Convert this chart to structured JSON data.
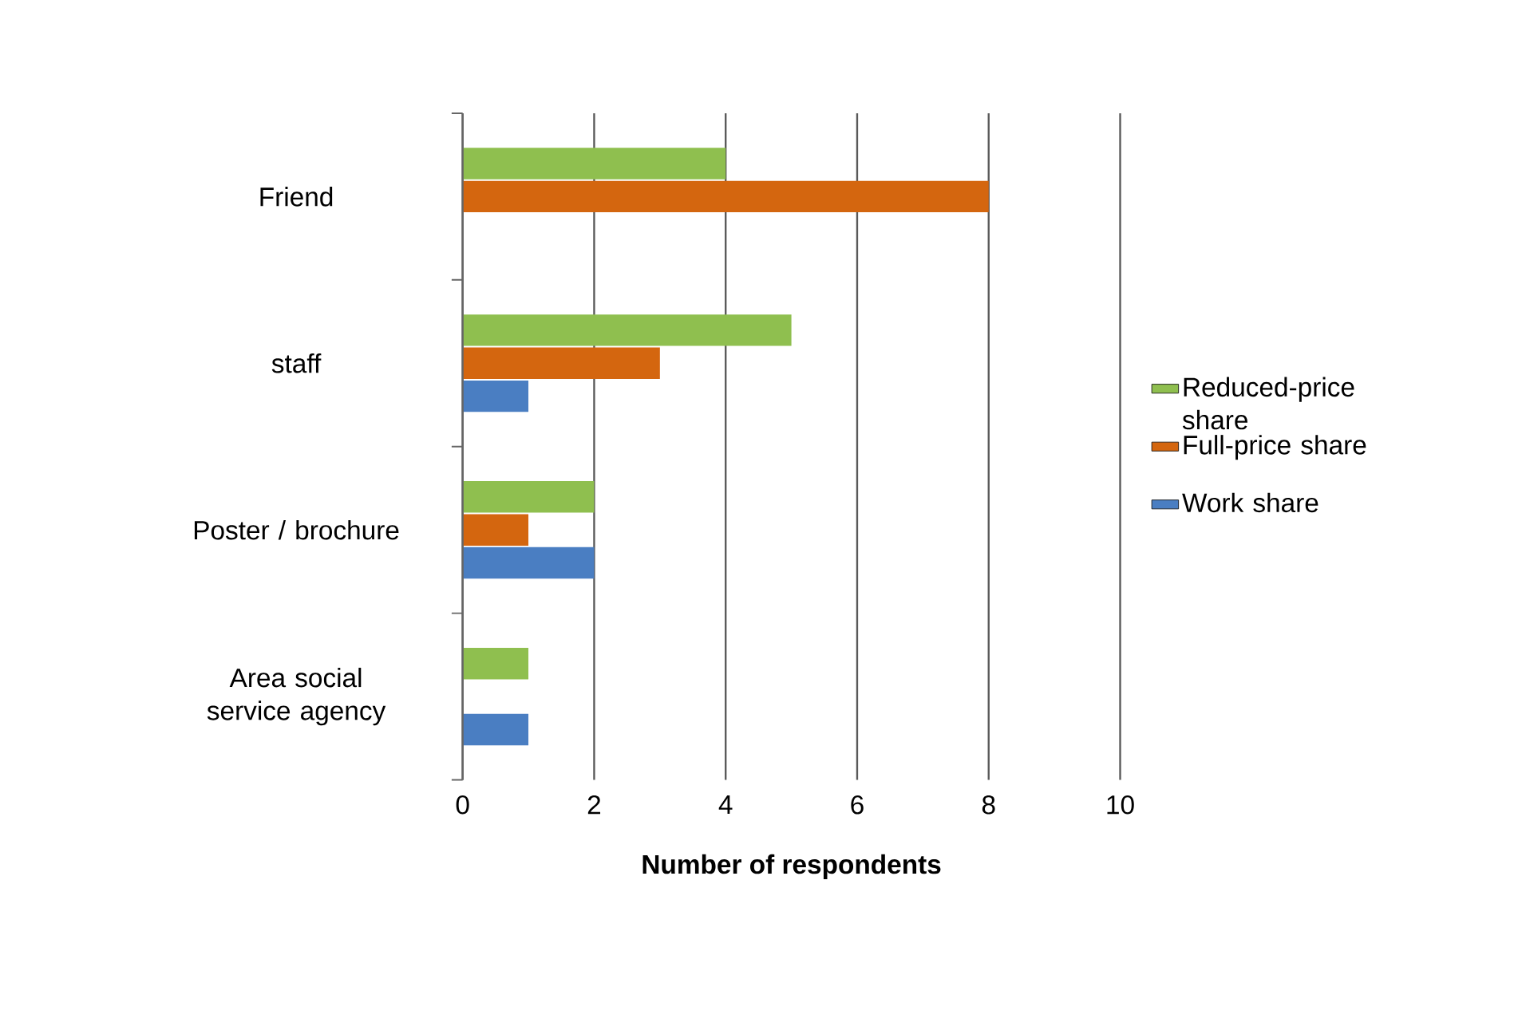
{
  "chart_data": {
    "type": "bar",
    "orientation": "horizontal",
    "xlabel": "Number of respondents",
    "categories": [
      "Friend",
      "staff",
      "Poster / brochure",
      "Area social service agency"
    ],
    "series": [
      {
        "name": "Reduced-price share",
        "color": "#8fbf4f",
        "values": [
          4,
          5,
          2,
          1
        ]
      },
      {
        "name": "Full-price share",
        "color": "#d4660f",
        "values": [
          8,
          3,
          1,
          null
        ]
      },
      {
        "name": "Work share",
        "color": "#4a7ec2",
        "values": [
          null,
          1,
          2,
          1
        ]
      }
    ],
    "xlim": [
      0,
      10
    ],
    "xticks": [
      0,
      2,
      4,
      6,
      8,
      10
    ],
    "grid": "x",
    "legend": "right"
  }
}
